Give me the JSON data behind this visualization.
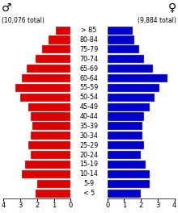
{
  "title_male": "♂",
  "title_female": "♀",
  "total_male": "(10,076 total)",
  "total_female": "(9,884 total)",
  "age_groups": [
    "> 85",
    "80-84",
    "75-79",
    "70-74",
    "65-69",
    "60-64",
    "55-59",
    "50-54",
    "45-49",
    "40-44",
    "35-39",
    "30-34",
    "25-29",
    "20-24",
    "15-19",
    "10-14",
    "5-9",
    "< 5"
  ],
  "male_pct": [
    0.9,
    1.3,
    1.7,
    2.1,
    2.6,
    2.9,
    3.3,
    3.0,
    2.5,
    2.4,
    2.3,
    2.4,
    2.5,
    2.4,
    2.7,
    2.9,
    2.0,
    2.1
  ],
  "female_pct": [
    1.5,
    1.6,
    1.9,
    2.2,
    2.7,
    3.6,
    3.1,
    2.8,
    2.5,
    2.2,
    2.1,
    2.1,
    2.2,
    2.0,
    2.3,
    2.5,
    2.5,
    2.0
  ],
  "male_color": "#dd0000",
  "female_color": "#0000cc",
  "bar_edge_color": "#aaaaaa",
  "xlim": 4.0,
  "background_color": "#ffffff",
  "tick_fontsize": 6,
  "age_label_fontsize": 5.8,
  "symbol_fontsize": 10,
  "total_fontsize": 5.5
}
